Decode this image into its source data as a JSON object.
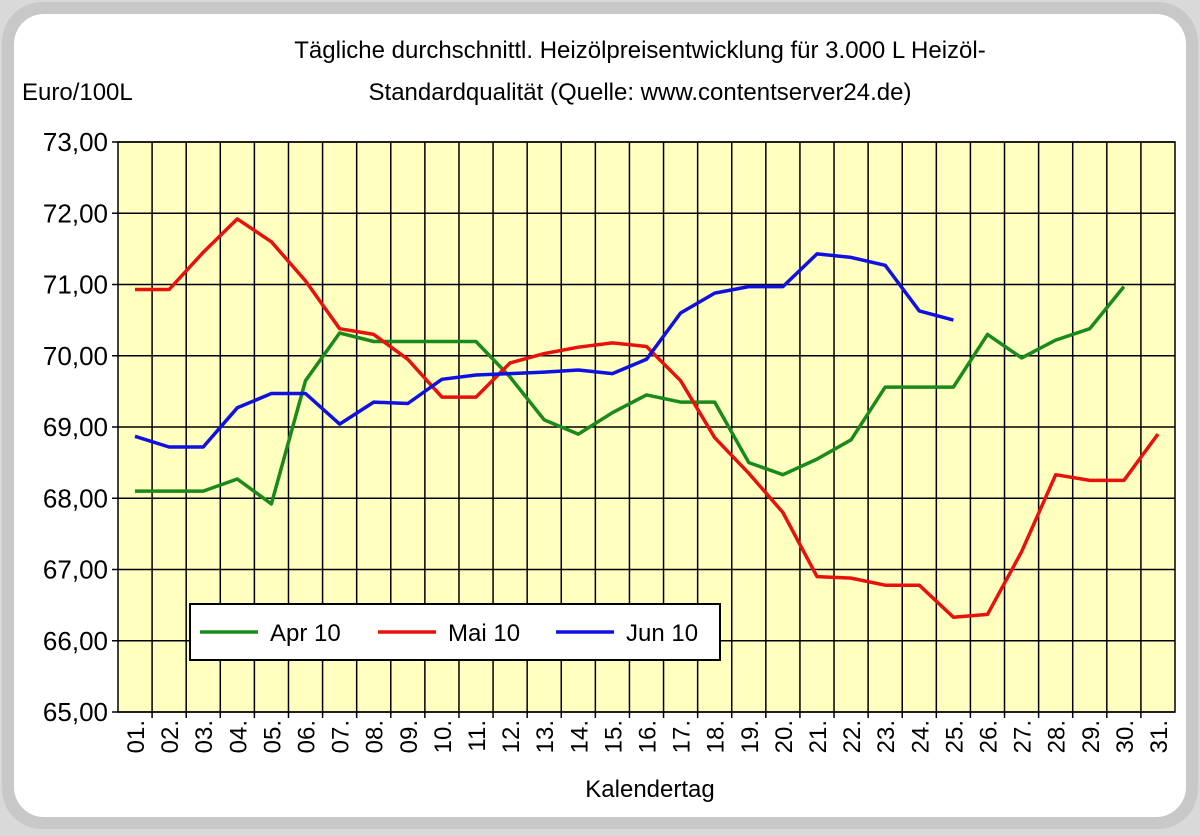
{
  "chart_data": {
    "type": "line",
    "title": [
      "Tägliche durchschnittl. Heizölpreisentwicklung für 3.000 L Heizöl-",
      "Standardqualität (Quelle: www.contentserver24.de)"
    ],
    "ylabel": "Euro/100L",
    "xlabel": "Kalendertag",
    "categories": [
      "01.",
      "02.",
      "03.",
      "04.",
      "05.",
      "06.",
      "07.",
      "08.",
      "09.",
      "10.",
      "11.",
      "12.",
      "13.",
      "14.",
      "15.",
      "16.",
      "17.",
      "18.",
      "19.",
      "20.",
      "21.",
      "22.",
      "23.",
      "24.",
      "25.",
      "26.",
      "27.",
      "28.",
      "29.",
      "30.",
      "31."
    ],
    "series": [
      {
        "name": "Apr 10",
        "color": "#1a8a1a",
        "values": [
          68.1,
          68.1,
          68.1,
          68.27,
          67.92,
          69.65,
          70.32,
          70.2,
          70.2,
          70.2,
          70.2,
          69.7,
          69.1,
          68.9,
          69.2,
          69.45,
          69.35,
          69.35,
          68.5,
          68.33,
          68.55,
          68.82,
          69.56,
          69.56,
          69.56,
          70.3,
          69.97,
          70.22,
          70.38,
          70.97,
          null
        ]
      },
      {
        "name": "Mai 10",
        "color": "#e8120c",
        "values": [
          70.93,
          70.93,
          71.45,
          71.92,
          71.6,
          71.05,
          70.38,
          70.3,
          69.95,
          69.42,
          69.42,
          69.9,
          70.03,
          70.12,
          70.18,
          70.13,
          69.65,
          68.85,
          68.35,
          67.8,
          66.9,
          66.88,
          66.78,
          66.78,
          66.33,
          66.37,
          67.25,
          68.33,
          68.25,
          68.25,
          68.9
        ]
      },
      {
        "name": "Jun 10",
        "color": "#1010e0",
        "values": [
          68.87,
          68.72,
          68.72,
          69.27,
          69.47,
          69.47,
          69.04,
          69.35,
          69.33,
          69.67,
          69.73,
          69.75,
          69.77,
          69.8,
          69.75,
          69.95,
          70.6,
          70.88,
          70.97,
          70.97,
          71.43,
          71.38,
          71.27,
          70.63,
          70.5,
          null,
          null,
          null,
          null,
          null,
          null
        ]
      }
    ],
    "ylim": [
      65,
      73
    ],
    "yticks": [
      {
        "value": 65,
        "label": "65,00"
      },
      {
        "value": 66,
        "label": "66,00"
      },
      {
        "value": 67,
        "label": "67,00"
      },
      {
        "value": 68,
        "label": "68,00"
      },
      {
        "value": 69,
        "label": "69,00"
      },
      {
        "value": 70,
        "label": "70,00"
      },
      {
        "value": 71,
        "label": "71,00"
      },
      {
        "value": 72,
        "label": "72,00"
      },
      {
        "value": 73,
        "label": "73,00"
      }
    ],
    "grid": true,
    "plot_background": "#ffffc0"
  }
}
